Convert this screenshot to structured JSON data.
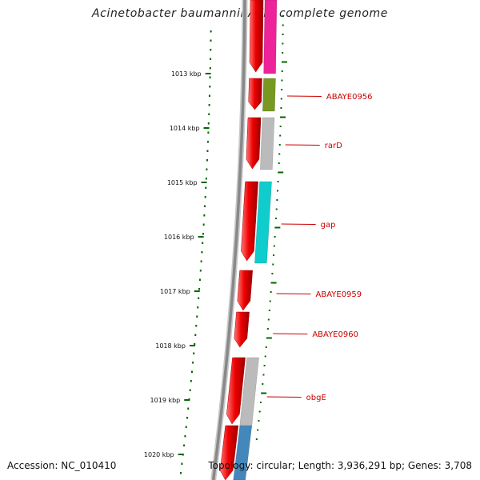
{
  "title": "Acinetobacter baumannii AYE, complete genome",
  "footer": {
    "accession": "Accession: NC_010410",
    "summary": "Topology: circular; Length: 3,936,291 bp; Genes: 3,708"
  },
  "colors": {
    "forward_arrow": "#ee0000",
    "backbone": "#888888",
    "tick": "#006600",
    "gene_label": "#cc0000"
  },
  "position_ticks": [
    "1013 kbp",
    "1014 kbp",
    "1015 kbp",
    "1016 kbp",
    "1017 kbp",
    "1018 kbp",
    "1019 kbp",
    "1020 kbp"
  ],
  "gene_labels": [
    "ABAYE0956",
    "rarD",
    "gap",
    "ABAYE0959",
    "ABAYE0960",
    "obgE"
  ],
  "cog_block_colors": [
    "#ee2299",
    "#779922",
    "#bbbbbb",
    "#11cccc",
    "#bbbbbb",
    "#4488bb"
  ]
}
